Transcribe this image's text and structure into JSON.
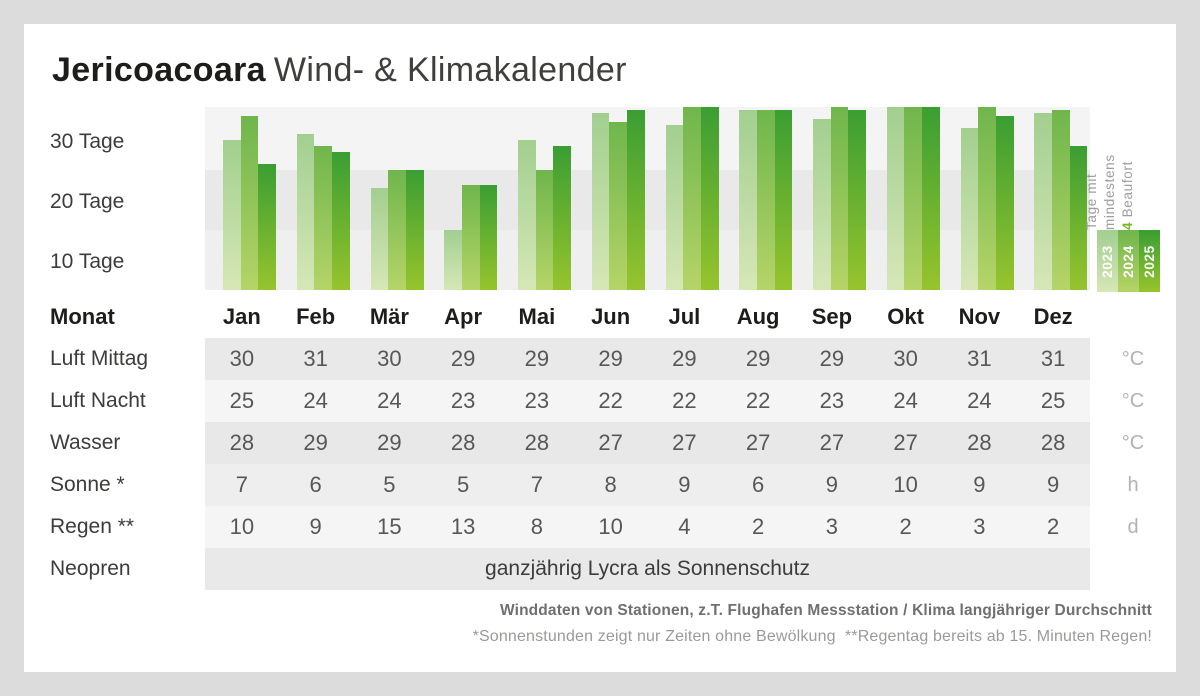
{
  "header": {
    "title_bold": "Jericoacoara",
    "title_light": "Wind- & Klimakalender"
  },
  "chart_data": {
    "type": "bar",
    "title": "Tage mit mindestens 4 Beaufort",
    "categories": [
      "Jan",
      "Feb",
      "Mär",
      "Apr",
      "Mai",
      "Jun",
      "Jul",
      "Aug",
      "Sep",
      "Okt",
      "Nov",
      "Dez"
    ],
    "series": [
      {
        "name": "2023",
        "values": [
          25,
          26,
          17,
          10,
          25,
          29.5,
          27.5,
          30,
          28.5,
          30.5,
          27,
          29.5
        ]
      },
      {
        "name": "2024",
        "values": [
          29,
          24,
          20,
          17.5,
          20,
          28,
          30.5,
          30,
          30.5,
          30.5,
          30.5,
          30
        ]
      },
      {
        "name": "2025",
        "values": [
          21,
          23,
          20,
          17.5,
          24,
          30,
          30.5,
          30,
          30,
          30.5,
          29,
          24
        ]
      }
    ],
    "ylabel": "Tage",
    "ylim": [
      0,
      30.5
    ],
    "ytick_labels": [
      "30 Tage",
      "20 Tage",
      "10 Tage"
    ],
    "grid": "horizontal-bands",
    "legend_position": "right"
  },
  "legend": {
    "line1": "Tage mit",
    "line2": "mindestens",
    "beaufort_num": "4",
    "beaufort_rest": " Beaufort",
    "years": [
      "2023",
      "2024",
      "2025"
    ]
  },
  "colors": {
    "accent_green": "#76b82a",
    "series": [
      [
        "#a2cf90",
        "#d6e7b6"
      ],
      [
        "#6fb64c",
        "#b5d468"
      ],
      [
        "#3a9e33",
        "#97c42d"
      ]
    ],
    "legend_num_green": "#76b82a"
  },
  "table": {
    "month_label": "Monat",
    "months": [
      "Jan",
      "Feb",
      "Mär",
      "Apr",
      "Mai",
      "Jun",
      "Jul",
      "Aug",
      "Sep",
      "Okt",
      "Nov",
      "Dez"
    ],
    "rows": [
      {
        "key": "luft-mittag",
        "label": "Luft Mittag",
        "values": [
          30,
          31,
          30,
          29,
          29,
          29,
          29,
          29,
          29,
          30,
          31,
          31
        ],
        "unit": "°C"
      },
      {
        "key": "luft-nacht",
        "label": "Luft Nacht",
        "values": [
          25,
          24,
          24,
          23,
          23,
          22,
          22,
          22,
          23,
          24,
          24,
          25
        ],
        "unit": "°C"
      },
      {
        "key": "wasser",
        "label": "Wasser",
        "values": [
          28,
          29,
          29,
          28,
          28,
          27,
          27,
          27,
          27,
          27,
          28,
          28
        ],
        "unit": "°C"
      },
      {
        "key": "sonne",
        "label": "Sonne *",
        "values": [
          7,
          6,
          5,
          5,
          7,
          8,
          9,
          6,
          9,
          10,
          9,
          9
        ],
        "unit": "h"
      },
      {
        "key": "regen",
        "label": "Regen **",
        "values": [
          10,
          9,
          15,
          13,
          8,
          10,
          4,
          2,
          3,
          2,
          3,
          2
        ],
        "unit": "d"
      },
      {
        "key": "neopren",
        "label": "Neopren",
        "text": "ganzjährig Lycra als Sonnenschutz",
        "unit": ""
      }
    ]
  },
  "footer": {
    "line1": "Winddaten von Stationen, z.T. Flughafen Messstation / Klima langjähriger Durchschnitt",
    "line2": "*Sonnenstunden zeigt nur Zeiten ohne Bewölkung  **Regentag bereits ab 15. Minuten Regen!"
  }
}
